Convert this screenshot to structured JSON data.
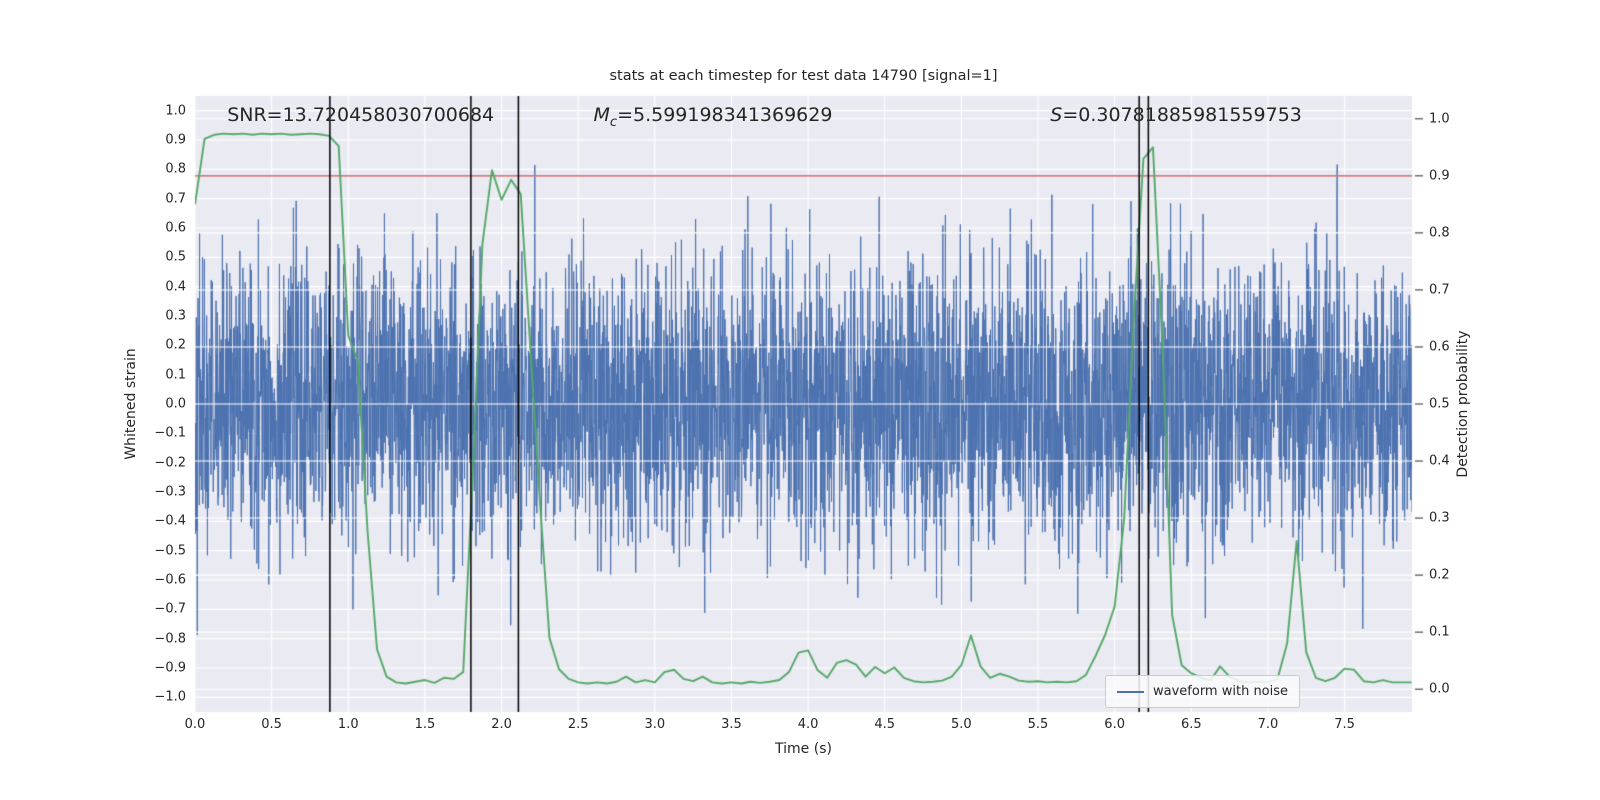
{
  "chart_data": {
    "type": "line",
    "title": "stats at each timestep for test data 14790 [signal=1]",
    "x_axis": {
      "label": "Time (s)",
      "lim": [
        0,
        7.94
      ],
      "ticks": [
        0.0,
        0.5,
        1.0,
        1.5,
        2.0,
        2.5,
        3.0,
        3.5,
        4.0,
        4.5,
        5.0,
        5.5,
        6.0,
        6.5,
        7.0,
        7.5
      ],
      "tick_labels": [
        "0.0",
        "0.5",
        "1.0",
        "1.5",
        "2.0",
        "2.5",
        "3.0",
        "3.5",
        "4.0",
        "4.5",
        "5.0",
        "5.5",
        "6.0",
        "6.5",
        "7.0",
        "7.5"
      ]
    },
    "y_left": {
      "label": "Whitened strain",
      "lim": [
        -1.05,
        1.05
      ],
      "ticks": [
        1.0,
        0.9,
        0.8,
        0.7,
        0.6,
        0.5,
        0.4,
        0.3,
        0.2,
        0.1,
        0.0,
        -0.1,
        -0.2,
        -0.3,
        -0.4,
        -0.5,
        -0.6,
        -0.7,
        -0.8,
        -0.9,
        -1.0
      ],
      "tick_labels": [
        "1.0",
        "0.9",
        "0.8",
        "0.7",
        "0.6",
        "0.5",
        "0.4",
        "0.3",
        "0.2",
        "0.1",
        "0.0",
        "−0.1",
        "−0.2",
        "−0.3",
        "−0.4",
        "−0.5",
        "−0.6",
        "−0.7",
        "−0.8",
        "−0.9",
        "−1.0"
      ]
    },
    "y_right": {
      "label": "Detection probability",
      "lim": [
        -0.04,
        1.04
      ],
      "ticks": [
        1.0,
        0.9,
        0.8,
        0.7,
        0.6,
        0.5,
        0.4,
        0.3,
        0.2,
        0.1,
        0.0
      ],
      "tick_labels": [
        "1.0",
        "0.9",
        "0.8",
        "0.7",
        "0.6",
        "0.5",
        "0.4",
        "0.3",
        "0.2",
        "0.1",
        "0.0"
      ]
    },
    "grid": true,
    "colors": {
      "plot_bg": "#eaeaf2",
      "grid": "#ffffff",
      "noise": "#4c72b0",
      "probability": "#55a868",
      "threshold": "#c44e52",
      "event_lines": "#000000",
      "text": "#262626"
    },
    "noise_series": {
      "name": "waveform with noise",
      "seed": 42,
      "n_points": 4800,
      "std": 0.24,
      "clip": 0.95
    },
    "threshold": {
      "axis": "right",
      "value": 0.9
    },
    "event_vlines": [
      0.88,
      1.8,
      2.11,
      6.16,
      6.22
    ],
    "annotations": [
      {
        "id": "snr",
        "var": "SNR",
        "italic": false,
        "sub": "",
        "rest": "=13.720458030700684",
        "x": 0.21
      },
      {
        "id": "chirp-mass",
        "var": "M",
        "italic": true,
        "sub": "c",
        "rest": "=5.599198341369629",
        "x": 2.6
      },
      {
        "id": "s-stat",
        "var": "S",
        "italic": true,
        "sub": "",
        "rest": "=0.30781885981559753",
        "x": 5.58
      }
    ],
    "legend": {
      "entries": [
        {
          "label": "waveform with noise",
          "color": "#4c72b0"
        }
      ]
    },
    "probability_series": {
      "name": "detection probability",
      "points": [
        [
          0.0,
          0.85
        ],
        [
          0.0625,
          0.965
        ],
        [
          0.125,
          0.972
        ],
        [
          0.1875,
          0.974
        ],
        [
          0.25,
          0.973
        ],
        [
          0.3125,
          0.974
        ],
        [
          0.375,
          0.972
        ],
        [
          0.4375,
          0.974
        ],
        [
          0.5,
          0.973
        ],
        [
          0.5625,
          0.974
        ],
        [
          0.625,
          0.972
        ],
        [
          0.6875,
          0.973
        ],
        [
          0.75,
          0.974
        ],
        [
          0.8125,
          0.973
        ],
        [
          0.875,
          0.97
        ],
        [
          0.9375,
          0.952
        ],
        [
          1.0,
          0.62
        ],
        [
          1.0625,
          0.575
        ],
        [
          1.125,
          0.28
        ],
        [
          1.1875,
          0.07
        ],
        [
          1.25,
          0.022
        ],
        [
          1.3125,
          0.012
        ],
        [
          1.375,
          0.01
        ],
        [
          1.4375,
          0.013
        ],
        [
          1.5,
          0.016
        ],
        [
          1.5625,
          0.011
        ],
        [
          1.625,
          0.02
        ],
        [
          1.6875,
          0.018
        ],
        [
          1.75,
          0.03
        ],
        [
          1.8125,
          0.38
        ],
        [
          1.875,
          0.78
        ],
        [
          1.9375,
          0.91
        ],
        [
          2.0,
          0.858
        ],
        [
          2.0625,
          0.893
        ],
        [
          2.125,
          0.868
        ],
        [
          2.1875,
          0.6
        ],
        [
          2.25,
          0.33
        ],
        [
          2.3125,
          0.09
        ],
        [
          2.375,
          0.035
        ],
        [
          2.4375,
          0.018
        ],
        [
          2.5,
          0.012
        ],
        [
          2.5625,
          0.01
        ],
        [
          2.625,
          0.012
        ],
        [
          2.6875,
          0.01
        ],
        [
          2.75,
          0.013
        ],
        [
          2.8125,
          0.022
        ],
        [
          2.875,
          0.012
        ],
        [
          2.9375,
          0.016
        ],
        [
          3.0,
          0.012
        ],
        [
          3.0625,
          0.03
        ],
        [
          3.125,
          0.034
        ],
        [
          3.1875,
          0.018
        ],
        [
          3.25,
          0.014
        ],
        [
          3.3125,
          0.022
        ],
        [
          3.375,
          0.012
        ],
        [
          3.4375,
          0.01
        ],
        [
          3.5,
          0.012
        ],
        [
          3.5625,
          0.01
        ],
        [
          3.625,
          0.013
        ],
        [
          3.6875,
          0.011
        ],
        [
          3.75,
          0.013
        ],
        [
          3.8125,
          0.016
        ],
        [
          3.875,
          0.03
        ],
        [
          3.9375,
          0.064
        ],
        [
          4.0,
          0.068
        ],
        [
          4.0625,
          0.033
        ],
        [
          4.125,
          0.02
        ],
        [
          4.1875,
          0.046
        ],
        [
          4.25,
          0.051
        ],
        [
          4.3125,
          0.043
        ],
        [
          4.375,
          0.022
        ],
        [
          4.4375,
          0.039
        ],
        [
          4.5,
          0.028
        ],
        [
          4.5625,
          0.038
        ],
        [
          4.625,
          0.02
        ],
        [
          4.6875,
          0.014
        ],
        [
          4.75,
          0.012
        ],
        [
          4.8125,
          0.013
        ],
        [
          4.875,
          0.015
        ],
        [
          4.9375,
          0.022
        ],
        [
          5.0,
          0.042
        ],
        [
          5.0625,
          0.094
        ],
        [
          5.125,
          0.04
        ],
        [
          5.1875,
          0.02
        ],
        [
          5.25,
          0.027
        ],
        [
          5.3125,
          0.022
        ],
        [
          5.375,
          0.015
        ],
        [
          5.4375,
          0.013
        ],
        [
          5.5,
          0.014
        ],
        [
          5.5625,
          0.012
        ],
        [
          5.625,
          0.013
        ],
        [
          5.6875,
          0.012
        ],
        [
          5.75,
          0.014
        ],
        [
          5.8125,
          0.025
        ],
        [
          5.875,
          0.058
        ],
        [
          5.9375,
          0.095
        ],
        [
          6.0,
          0.145
        ],
        [
          6.0625,
          0.3
        ],
        [
          6.125,
          0.65
        ],
        [
          6.1875,
          0.93
        ],
        [
          6.25,
          0.95
        ],
        [
          6.3125,
          0.6
        ],
        [
          6.375,
          0.13
        ],
        [
          6.4375,
          0.042
        ],
        [
          6.5,
          0.028
        ],
        [
          6.5625,
          0.02
        ],
        [
          6.625,
          0.015
        ],
        [
          6.6875,
          0.04
        ],
        [
          6.75,
          0.022
        ],
        [
          6.8125,
          0.014
        ],
        [
          6.875,
          0.012
        ],
        [
          6.9375,
          0.013
        ],
        [
          7.0,
          0.012
        ],
        [
          7.0625,
          0.018
        ],
        [
          7.125,
          0.08
        ],
        [
          7.1875,
          0.26
        ],
        [
          7.25,
          0.065
        ],
        [
          7.3125,
          0.02
        ],
        [
          7.375,
          0.014
        ],
        [
          7.4375,
          0.02
        ],
        [
          7.5,
          0.036
        ],
        [
          7.5625,
          0.034
        ],
        [
          7.625,
          0.014
        ],
        [
          7.6875,
          0.012
        ],
        [
          7.75,
          0.016
        ],
        [
          7.8125,
          0.012
        ],
        [
          7.875,
          0.012
        ],
        [
          7.9375,
          0.012
        ]
      ]
    }
  }
}
